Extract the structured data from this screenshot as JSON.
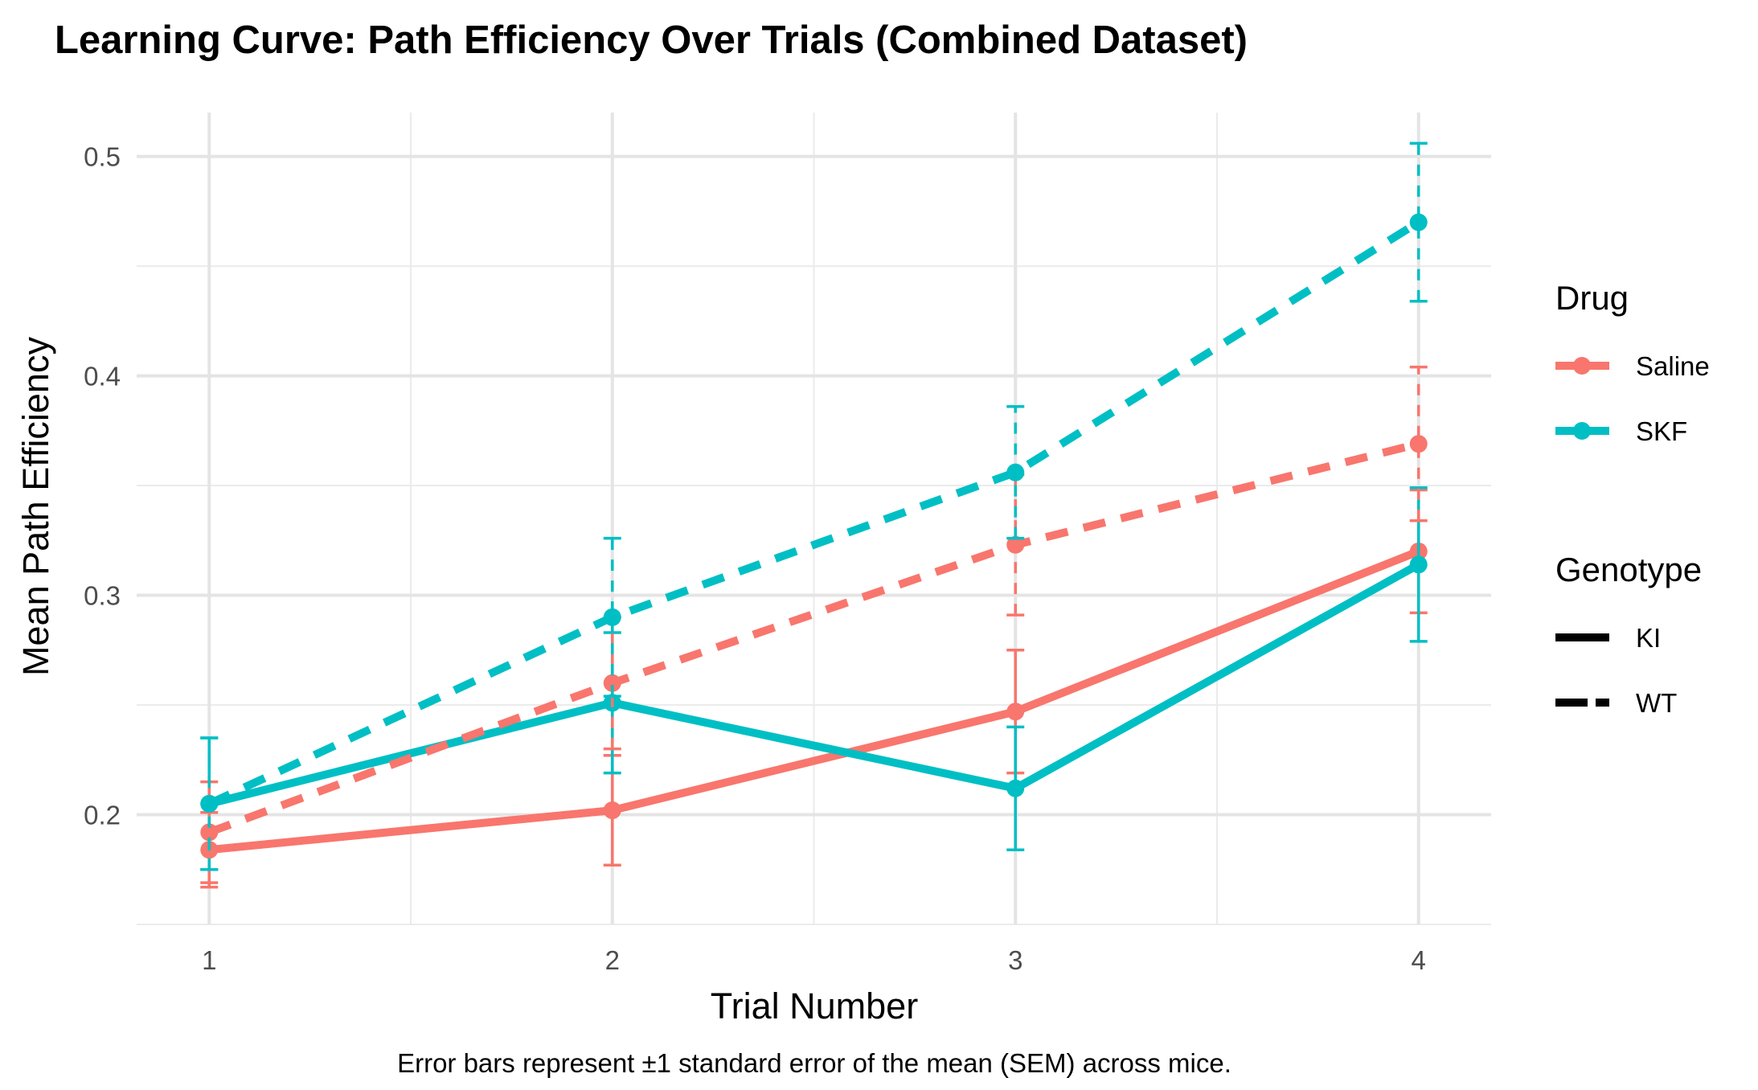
{
  "chart_data": {
    "type": "line",
    "title": "Learning Curve: Path Efficiency Over Trials (Combined Dataset)",
    "xlabel": "Trial Number",
    "ylabel": "Mean Path Efficiency",
    "caption": "Error bars represent ±1 standard error of the mean (SEM) across mice.",
    "x": [
      1,
      2,
      3,
      4
    ],
    "x_ticks": [
      "1",
      "2",
      "3",
      "4"
    ],
    "xlim": [
      0.82,
      4.18
    ],
    "y_ticks": [
      "0.2",
      "0.3",
      "0.4",
      "0.5"
    ],
    "y_tick_values": [
      0.2,
      0.3,
      0.4,
      0.5
    ],
    "ylim": [
      0.15,
      0.52
    ],
    "grid": true,
    "legend_position": "right",
    "colors": {
      "Saline": "#F8766D",
      "SKF": "#00BFC4"
    },
    "legend": {
      "drug_title": "Drug",
      "drug_items": [
        "Saline",
        "SKF"
      ],
      "genotype_title": "Genotype",
      "genotype_items": [
        "KI",
        "WT"
      ]
    },
    "series": [
      {
        "drug": "Saline",
        "genotype": "KI",
        "line": "solid",
        "values": [
          0.184,
          0.202,
          0.247,
          0.32
        ],
        "sem": [
          0.017,
          0.025,
          0.028,
          0.028
        ]
      },
      {
        "drug": "SKF",
        "genotype": "KI",
        "line": "solid",
        "values": [
          0.205,
          0.251,
          0.212,
          0.314
        ],
        "sem": [
          0.03,
          0.032,
          0.028,
          0.035
        ]
      },
      {
        "drug": "Saline",
        "genotype": "WT",
        "line": "dashed",
        "values": [
          0.192,
          0.26,
          0.323,
          0.369
        ],
        "sem": [
          0.023,
          0.03,
          0.032,
          0.035
        ]
      },
      {
        "drug": "SKF",
        "genotype": "WT",
        "line": "dashed",
        "values": [
          0.205,
          0.29,
          0.356,
          0.47
        ],
        "sem": [
          0.03,
          0.036,
          0.03,
          0.036
        ]
      }
    ]
  }
}
